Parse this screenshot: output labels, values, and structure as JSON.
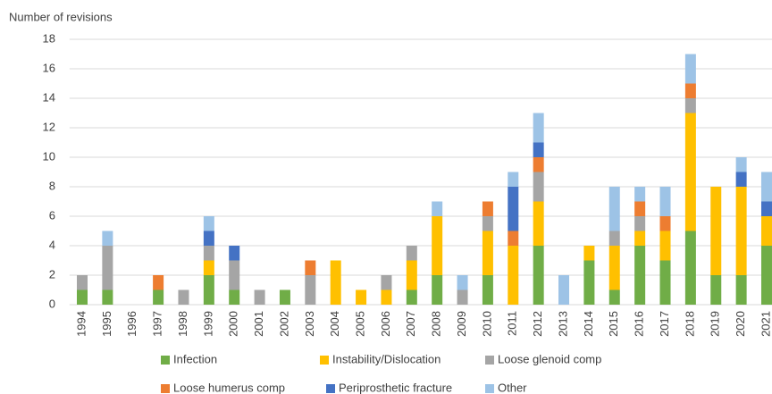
{
  "chart_data": {
    "type": "stacked-bar",
    "y_axis_label": "Number of revisions",
    "categories": [
      "1994",
      "1995",
      "1996",
      "1997",
      "1998",
      "1999",
      "2000",
      "2001",
      "2002",
      "2003",
      "2004",
      "2005",
      "2006",
      "2007",
      "2008",
      "2009",
      "2010",
      "2011",
      "2012",
      "2013",
      "2014",
      "2015",
      "2016",
      "2017",
      "2018",
      "2019",
      "2020",
      "2021"
    ],
    "series": [
      {
        "name": "Infection",
        "color": "#70ad47",
        "values": [
          1,
          1,
          0,
          1,
          0,
          2,
          1,
          0,
          1,
          0,
          0,
          0,
          0,
          1,
          2,
          0,
          2,
          0,
          4,
          0,
          3,
          1,
          4,
          3,
          5,
          2,
          2,
          4
        ]
      },
      {
        "name": "Instability/Dislocation",
        "color": "#ffc000",
        "values": [
          0,
          0,
          0,
          0,
          0,
          1,
          0,
          0,
          0,
          0,
          3,
          1,
          1,
          2,
          4,
          0,
          3,
          4,
          3,
          0,
          1,
          3,
          1,
          2,
          8,
          6,
          6,
          2
        ]
      },
      {
        "name": "Loose glenoid comp",
        "color": "#a5a5a5",
        "values": [
          1,
          3,
          0,
          0,
          1,
          1,
          2,
          1,
          0,
          2,
          0,
          0,
          1,
          1,
          0,
          1,
          1,
          0,
          2,
          0,
          0,
          1,
          1,
          0,
          1,
          0,
          0,
          0
        ]
      },
      {
        "name": "Loose humerus comp",
        "color": "#ed7d31",
        "values": [
          0,
          0,
          0,
          1,
          0,
          0,
          0,
          0,
          0,
          1,
          0,
          0,
          0,
          0,
          0,
          0,
          1,
          1,
          1,
          0,
          0,
          0,
          1,
          1,
          1,
          0,
          0,
          0
        ]
      },
      {
        "name": "Periprosthetic fracture",
        "color": "#4472c4",
        "values": [
          0,
          0,
          0,
          0,
          0,
          1,
          1,
          0,
          0,
          0,
          0,
          0,
          0,
          0,
          0,
          0,
          0,
          3,
          1,
          0,
          0,
          0,
          0,
          0,
          0,
          0,
          1,
          1
        ]
      },
      {
        "name": "Other",
        "color": "#9dc3e6",
        "values": [
          0,
          1,
          0,
          0,
          0,
          1,
          0,
          0,
          0,
          0,
          0,
          0,
          0,
          0,
          1,
          1,
          0,
          1,
          2,
          2,
          0,
          3,
          1,
          2,
          2,
          0,
          1,
          2
        ]
      }
    ],
    "ylim": [
      0,
      18
    ],
    "yticks": [
      0,
      2,
      4,
      6,
      8,
      10,
      12,
      14,
      16,
      18
    ],
    "grid": true
  }
}
